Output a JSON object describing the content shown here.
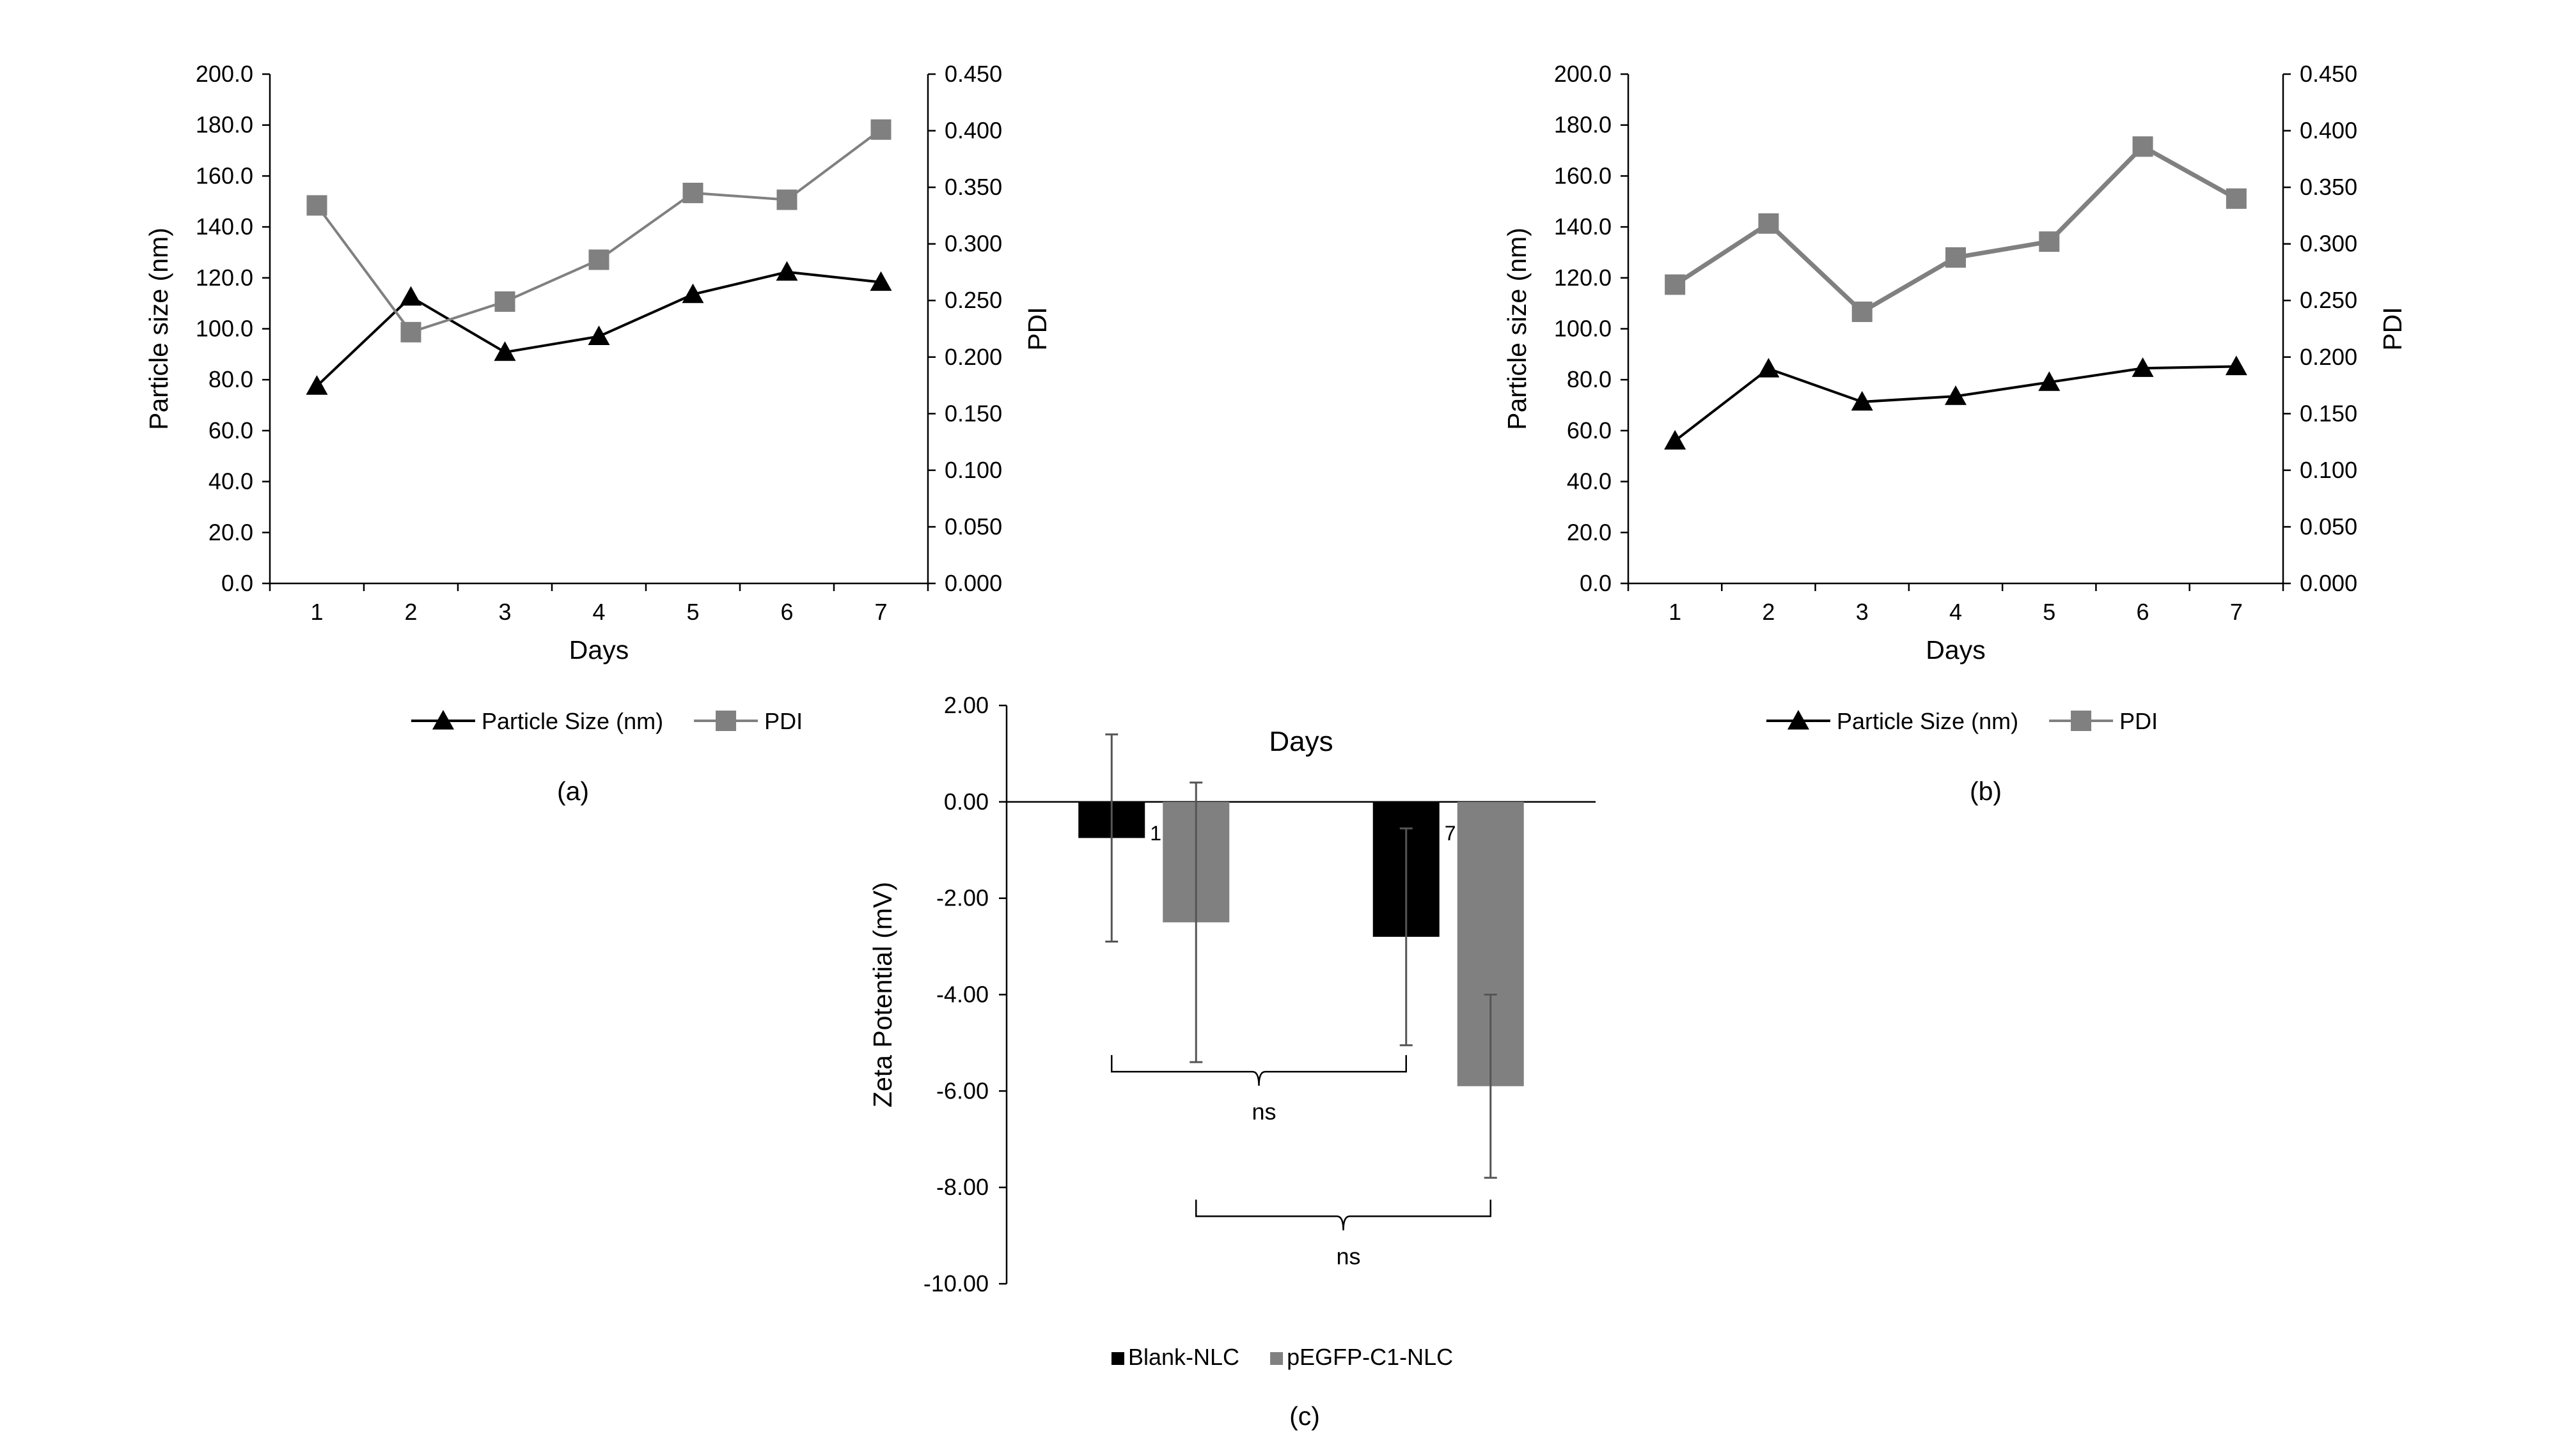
{
  "chart_data": [
    {
      "id": "a",
      "type": "line",
      "caption": "(a)",
      "categories": [
        "1",
        "2",
        "3",
        "4",
        "5",
        "6",
        "7"
      ],
      "xlabel": "Days",
      "ylabel": "Particle size (nm)",
      "y2label": "PDI",
      "ylim": [
        0,
        200
      ],
      "y2lim": [
        0,
        0.45
      ],
      "yticks": [
        "0.0",
        "20.0",
        "40.0",
        "60.0",
        "80.0",
        "100.0",
        "120.0",
        "140.0",
        "160.0",
        "180.0",
        "200.0"
      ],
      "y2ticks": [
        "0.000",
        "0.050",
        "0.100",
        "0.150",
        "0.200",
        "0.250",
        "0.300",
        "0.350",
        "0.400",
        "0.450"
      ],
      "legend_position": "bottom",
      "series": [
        {
          "name": "Particle Size (nm)",
          "axis": "left",
          "marker": "triangle",
          "color": "#000000",
          "values": [
            77.5,
            112.5,
            90.8,
            97.0,
            113.5,
            122.3,
            118.3
          ]
        },
        {
          "name": "PDI",
          "axis": "right",
          "marker": "square",
          "color": "#808080",
          "values": [
            0.334,
            0.222,
            0.249,
            0.286,
            0.345,
            0.339,
            0.401
          ]
        }
      ]
    },
    {
      "id": "b",
      "type": "line",
      "caption": "(b)",
      "categories": [
        "1",
        "2",
        "3",
        "4",
        "5",
        "6",
        "7"
      ],
      "xlabel": "Days",
      "ylabel": "Particle size (nm)",
      "y2label": "PDI",
      "ylim": [
        0,
        200
      ],
      "y2lim": [
        0,
        0.45
      ],
      "yticks": [
        "0.0",
        "20.0",
        "40.0",
        "60.0",
        "80.0",
        "100.0",
        "120.0",
        "140.0",
        "160.0",
        "180.0",
        "200.0"
      ],
      "y2ticks": [
        "0.000",
        "0.050",
        "0.100",
        "0.150",
        "0.200",
        "0.250",
        "0.300",
        "0.350",
        "0.400",
        "0.450"
      ],
      "legend_position": "bottom",
      "series": [
        {
          "name": "Particle Size (nm)",
          "axis": "left",
          "marker": "triangle",
          "color": "#000000",
          "values": [
            56.0,
            84.3,
            71.3,
            73.5,
            79.0,
            84.5,
            85.2
          ]
        },
        {
          "name": "PDI",
          "axis": "right",
          "marker": "square",
          "color": "#808080",
          "values": [
            0.264,
            0.318,
            0.24,
            0.288,
            0.302,
            0.386,
            0.34
          ]
        }
      ]
    },
    {
      "id": "c",
      "type": "bar",
      "caption": "(c)",
      "title": "Days",
      "categories": [
        "1",
        "7"
      ],
      "ylabel": "Zeta Potential (mV)",
      "ylim": [
        -10,
        2
      ],
      "yticks": [
        "-10.00",
        "-8.00",
        "-6.00",
        "-4.00",
        "-2.00",
        "0.00",
        "2.00"
      ],
      "legend_position": "bottom",
      "series": [
        {
          "name": "Blank-NLC",
          "color": "#000000",
          "values": [
            -0.75,
            -2.8
          ],
          "errors": [
            2.15,
            2.25
          ]
        },
        {
          "name": "pEGFP-C1-NLC",
          "color": "#808080",
          "values": [
            -2.5,
            -5.9
          ],
          "errors": [
            2.9,
            1.9
          ]
        }
      ],
      "annotations": [
        {
          "text": "ns",
          "from": "Blank-NLC day 1",
          "to": "Blank-NLC day 7"
        },
        {
          "text": "ns",
          "from": "pEGFP-C1-NLC day 1",
          "to": "pEGFP-C1-NLC day 7"
        }
      ]
    }
  ]
}
